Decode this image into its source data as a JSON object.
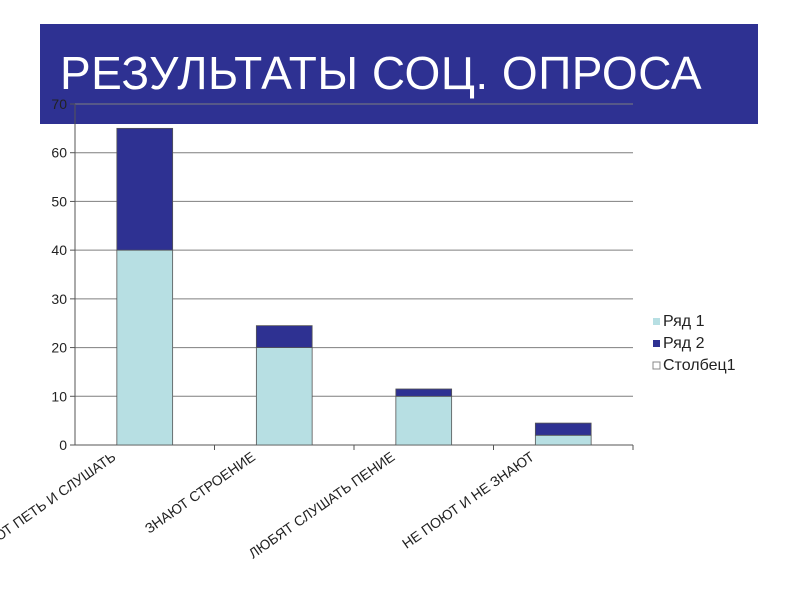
{
  "slide": {
    "title": "РЕЗУЛЬТАТЫ СОЦ. ОПРОСА"
  },
  "chart_data": {
    "type": "bar",
    "stacked": true,
    "categories": [
      "УМЕЮТ ПЕТЬ И СЛУШАТЬ",
      "ЗНАЮТ СТРОЕНИЕ",
      "ЛЮБЯТ СЛУШАТЬ ПЕНИЕ",
      "НЕ ПОЮТ И НЕ ЗНАЮТ"
    ],
    "series": [
      {
        "name": "Ряд 1",
        "values": [
          40,
          20,
          10,
          2
        ],
        "color": "#b7dfe3"
      },
      {
        "name": "Ряд 2",
        "values": [
          25,
          4.5,
          1.5,
          2.5
        ],
        "color": "#2e3192"
      },
      {
        "name": "Столбец1",
        "values": [
          0,
          0,
          0,
          0
        ],
        "color": "#ffffff"
      }
    ],
    "ylim": [
      0,
      70
    ],
    "yticks": [
      0,
      10,
      20,
      30,
      40,
      50,
      60,
      70
    ],
    "grid": true,
    "legend": "right",
    "xlabel": "",
    "ylabel": ""
  }
}
